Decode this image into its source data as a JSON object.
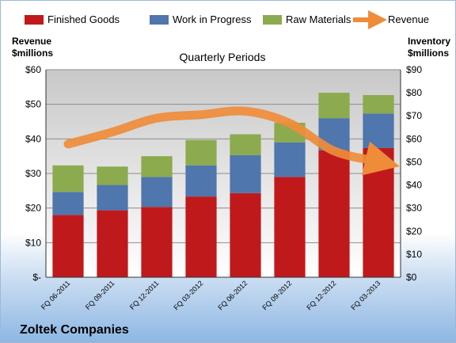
{
  "company": "Zoltek Companies",
  "chart_data": {
    "type": "bar",
    "stacked": true,
    "subtitle": "Quarterly Periods",
    "left_axis": {
      "label_line1": "Revenue",
      "label_line2": "$millions",
      "ylim": [
        0,
        60
      ],
      "ticks": [
        "$-",
        "$10",
        "$20",
        "$30",
        "$40",
        "$50",
        "$60"
      ]
    },
    "right_axis": {
      "label_line1": "Inventory",
      "label_line2": "$millions",
      "ylim": [
        0,
        90
      ],
      "ticks": [
        "$0",
        "$10",
        "$20",
        "$30",
        "$40",
        "$50",
        "$60",
        "$70",
        "$80",
        "$90"
      ]
    },
    "categories": [
      "FQ 06-2011",
      "FQ 09-2011",
      "FQ 12-2011",
      "FQ 03-2012",
      "FQ 06-2012",
      "FQ 09-2012",
      "FQ 12-2012",
      "FQ 03-2013"
    ],
    "series": [
      {
        "name": "Finished Goods",
        "axis": "right",
        "color": "#c0191c",
        "values": [
          27,
          29,
          30.5,
          35,
          36.5,
          43.5,
          55,
          56
        ]
      },
      {
        "name": "Work in Progress",
        "axis": "right",
        "color": "#4f76ad",
        "values": [
          10,
          11,
          13,
          13.5,
          16.5,
          15,
          14,
          15
        ]
      },
      {
        "name": "Raw Materials",
        "axis": "right",
        "color": "#8bab4e",
        "values": [
          11.5,
          8,
          9,
          11,
          9,
          8.5,
          11,
          8
        ]
      },
      {
        "name": "Revenue",
        "axis": "left",
        "type": "line",
        "color": "#ef8c3a",
        "values": [
          38.5,
          42,
          46,
          47,
          48,
          44.5,
          36.5,
          33.5
        ]
      }
    ],
    "legend_position": "top",
    "grid": true
  }
}
